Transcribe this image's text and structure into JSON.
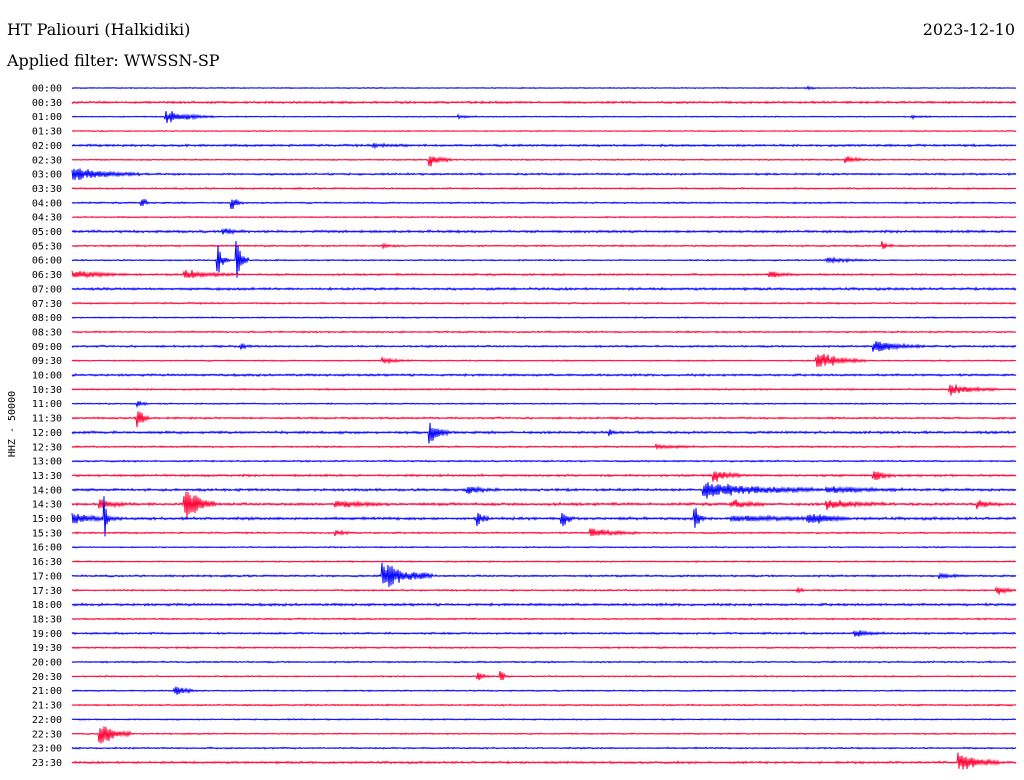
{
  "header": {
    "station": "HT Paliouri (Halkidiki)",
    "date": "2023-12-10",
    "filter": "Applied filter: WWSSN-SP"
  },
  "colors": {
    "trace_a": "#0000ff",
    "trace_b": "#ff0033"
  },
  "chart_data": {
    "type": "line",
    "ylabel": "HHZ - 50000",
    "tick_labels": [
      "00:00",
      "00:30",
      "01:00",
      "01:30",
      "02:00",
      "02:30",
      "03:00",
      "03:30",
      "04:00",
      "04:30",
      "05:00",
      "05:30",
      "06:00",
      "06:30",
      "07:00",
      "07:30",
      "08:00",
      "08:30",
      "09:00",
      "09:30",
      "10:00",
      "10:30",
      "11:00",
      "11:30",
      "12:00",
      "12:30",
      "13:00",
      "13:30",
      "14:00",
      "14:30",
      "15:00",
      "15:30",
      "16:00",
      "16:30",
      "17:00",
      "17:30",
      "18:00",
      "18:30",
      "19:00",
      "19:30",
      "20:00",
      "20:30",
      "21:00",
      "21:30",
      "22:00",
      "22:30",
      "23:00",
      "23:30"
    ],
    "trace_minutes": 30,
    "noise": [
      0.4,
      0.8,
      0.4,
      0.4,
      0.8,
      0.5,
      0.7,
      0.6,
      0.6,
      0.5,
      0.9,
      0.6,
      0.5,
      0.7,
      0.9,
      0.6,
      0.5,
      0.6,
      0.7,
      0.5,
      0.8,
      0.6,
      0.5,
      0.7,
      0.9,
      0.6,
      0.6,
      0.8,
      0.9,
      1.0,
      1.0,
      0.6,
      0.5,
      0.5,
      0.7,
      0.6,
      0.9,
      0.6,
      0.7,
      0.6,
      0.6,
      0.5,
      0.5,
      0.6,
      0.5,
      0.5,
      0.6,
      0.8
    ],
    "events": [
      {
        "trace": 0,
        "t": 0.78,
        "amp": 2,
        "dur": 0.01
      },
      {
        "trace": 2,
        "t": 0.1,
        "amp": 7,
        "dur": 0.05
      },
      {
        "trace": 2,
        "t": 0.41,
        "amp": 2,
        "dur": 0.02
      },
      {
        "trace": 2,
        "t": 0.89,
        "amp": 2,
        "dur": 0.02
      },
      {
        "trace": 4,
        "t": 0.32,
        "amp": 2,
        "dur": 0.04
      },
      {
        "trace": 5,
        "t": 0.38,
        "amp": 8,
        "dur": 0.02
      },
      {
        "trace": 5,
        "t": 0.82,
        "amp": 5,
        "dur": 0.02
      },
      {
        "trace": 6,
        "t": 0.0,
        "amp": 8,
        "dur": 0.07
      },
      {
        "trace": 8,
        "t": 0.075,
        "amp": 9,
        "dur": 0.005
      },
      {
        "trace": 8,
        "t": 0.17,
        "amp": 8,
        "dur": 0.01
      },
      {
        "trace": 10,
        "t": 0.16,
        "amp": 3,
        "dur": 0.02
      },
      {
        "trace": 11,
        "t": 0.33,
        "amp": 2,
        "dur": 0.02
      },
      {
        "trace": 11,
        "t": 0.86,
        "amp": 4,
        "dur": 0.01
      },
      {
        "trace": 12,
        "t": 0.155,
        "amp": 18,
        "dur": 0.01
      },
      {
        "trace": 12,
        "t": 0.175,
        "amp": 25,
        "dur": 0.01
      },
      {
        "trace": 12,
        "t": 0.8,
        "amp": 3,
        "dur": 0.05
      },
      {
        "trace": 13,
        "t": 0.0,
        "amp": 5,
        "dur": 0.06
      },
      {
        "trace": 13,
        "t": 0.12,
        "amp": 5,
        "dur": 0.05
      },
      {
        "trace": 13,
        "t": 0.74,
        "amp": 4,
        "dur": 0.03
      },
      {
        "trace": 18,
        "t": 0.18,
        "amp": 3,
        "dur": 0.01
      },
      {
        "trace": 18,
        "t": 0.85,
        "amp": 7,
        "dur": 0.05
      },
      {
        "trace": 19,
        "t": 0.33,
        "amp": 3,
        "dur": 0.03
      },
      {
        "trace": 19,
        "t": 0.79,
        "amp": 10,
        "dur": 0.05
      },
      {
        "trace": 21,
        "t": 0.93,
        "amp": 6,
        "dur": 0.05
      },
      {
        "trace": 22,
        "t": 0.07,
        "amp": 4,
        "dur": 0.01
      },
      {
        "trace": 23,
        "t": 0.07,
        "amp": 12,
        "dur": 0.01
      },
      {
        "trace": 24,
        "t": 0.38,
        "amp": 12,
        "dur": 0.02
      },
      {
        "trace": 24,
        "t": 0.57,
        "amp": 5,
        "dur": 0.005
      },
      {
        "trace": 25,
        "t": 0.62,
        "amp": 2,
        "dur": 0.04
      },
      {
        "trace": 27,
        "t": 0.68,
        "amp": 8,
        "dur": 0.03
      },
      {
        "trace": 27,
        "t": 0.85,
        "amp": 7,
        "dur": 0.02
      },
      {
        "trace": 28,
        "t": 0.42,
        "amp": 4,
        "dur": 0.03
      },
      {
        "trace": 28,
        "t": 0.67,
        "amp": 9,
        "dur": 0.12
      },
      {
        "trace": 28,
        "t": 0.8,
        "amp": 4,
        "dur": 0.08
      },
      {
        "trace": 29,
        "t": 0.12,
        "amp": 20,
        "dur": 0.03
      },
      {
        "trace": 29,
        "t": 0.03,
        "amp": 5,
        "dur": 0.03
      },
      {
        "trace": 29,
        "t": 0.28,
        "amp": 4,
        "dur": 0.05
      },
      {
        "trace": 29,
        "t": 0.7,
        "amp": 5,
        "dur": 0.03
      },
      {
        "trace": 29,
        "t": 0.8,
        "amp": 5,
        "dur": 0.06
      },
      {
        "trace": 29,
        "t": 0.96,
        "amp": 5,
        "dur": 0.02
      },
      {
        "trace": 30,
        "t": 0.0,
        "amp": 6,
        "dur": 0.05
      },
      {
        "trace": 30,
        "t": 0.035,
        "amp": 25,
        "dur": 0.005
      },
      {
        "trace": 30,
        "t": 0.43,
        "amp": 12,
        "dur": 0.01
      },
      {
        "trace": 30,
        "t": 0.52,
        "amp": 12,
        "dur": 0.01
      },
      {
        "trace": 30,
        "t": 0.66,
        "amp": 14,
        "dur": 0.01
      },
      {
        "trace": 30,
        "t": 0.7,
        "amp": 3,
        "dur": 0.12
      },
      {
        "trace": 30,
        "t": 0.78,
        "amp": 6,
        "dur": 0.04
      },
      {
        "trace": 31,
        "t": 0.28,
        "amp": 3,
        "dur": 0.02
      },
      {
        "trace": 31,
        "t": 0.55,
        "amp": 5,
        "dur": 0.05
      },
      {
        "trace": 34,
        "t": 0.33,
        "amp": 18,
        "dur": 0.05
      },
      {
        "trace": 34,
        "t": 0.92,
        "amp": 2,
        "dur": 0.03
      },
      {
        "trace": 35,
        "t": 0.77,
        "amp": 4,
        "dur": 0.005
      },
      {
        "trace": 35,
        "t": 0.98,
        "amp": 5,
        "dur": 0.02
      },
      {
        "trace": 38,
        "t": 0.83,
        "amp": 4,
        "dur": 0.03
      },
      {
        "trace": 41,
        "t": 0.43,
        "amp": 7,
        "dur": 0.01
      },
      {
        "trace": 41,
        "t": 0.455,
        "amp": 9,
        "dur": 0.005
      },
      {
        "trace": 42,
        "t": 0.11,
        "amp": 6,
        "dur": 0.02
      },
      {
        "trace": 45,
        "t": 0.03,
        "amp": 18,
        "dur": 0.03
      },
      {
        "trace": 47,
        "t": 0.94,
        "amp": 12,
        "dur": 0.04
      }
    ]
  }
}
